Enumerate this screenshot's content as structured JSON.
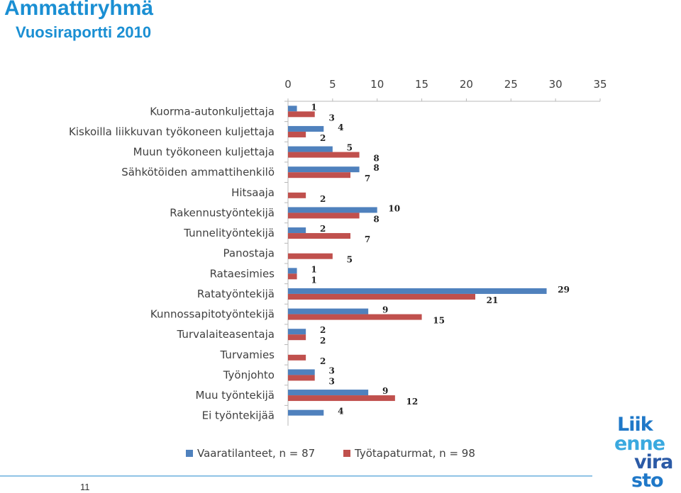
{
  "header": {
    "title": "Ammattiryhmä",
    "subtitle": "Vuosiraportti 2010"
  },
  "footer": {
    "page_number": "11"
  },
  "logo": {
    "lines": [
      "Liik",
      "enne",
      "vira",
      "sto"
    ],
    "colors": [
      "#1f78c8",
      "#3aa9df",
      "#2b5aa6",
      "#1f78c8"
    ]
  },
  "chart_data": {
    "type": "bar",
    "orientation": "horizontal",
    "categories": [
      "Kuorma-autonkuljettaja",
      "Kiskoilla liikkuvan työkoneen kuljettaja",
      "Muun työkoneen kuljettaja",
      "Sähkötöiden ammattihenkilö",
      "Hitsaaja",
      "Rakennustyöntekijä",
      "Tunnelityöntekijä",
      "Panostaja",
      "Rataesimies",
      "Ratatyöntekijä",
      "Kunnossapitotyöntekijä",
      "Turvalaiteasentaja",
      "Turvamies",
      "Työnjohto",
      "Muu työntekijä",
      "Ei työntekijää"
    ],
    "series": [
      {
        "name": "Vaaratilanteet, n = 87",
        "color": "#4f81bd",
        "values": [
          1,
          4,
          5,
          8,
          null,
          10,
          2,
          null,
          1,
          29,
          9,
          2,
          null,
          3,
          9,
          4
        ]
      },
      {
        "name": "Työtapaturmat, n = 98",
        "color": "#c0504d",
        "values": [
          3,
          2,
          8,
          7,
          2,
          8,
          7,
          5,
          1,
          21,
          15,
          2,
          2,
          3,
          12,
          null
        ]
      }
    ],
    "xlim": [
      0,
      35
    ],
    "xticks": [
      0,
      5,
      10,
      15,
      20,
      25,
      30,
      35
    ],
    "grid": false,
    "legend_position": "bottom"
  }
}
